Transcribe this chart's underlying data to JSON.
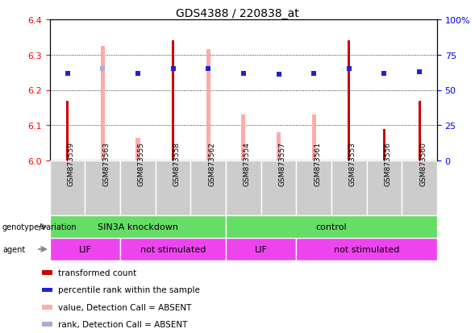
{
  "title": "GDS4388 / 220838_at",
  "samples": [
    "GSM873559",
    "GSM873563",
    "GSM873555",
    "GSM873558",
    "GSM873562",
    "GSM873554",
    "GSM873557",
    "GSM873561",
    "GSM873553",
    "GSM873556",
    "GSM873560"
  ],
  "red_bar_values": [
    6.17,
    null,
    null,
    6.34,
    null,
    null,
    null,
    null,
    6.34,
    6.09,
    6.17
  ],
  "pink_bar_values": [
    null,
    6.325,
    6.065,
    null,
    6.315,
    6.13,
    6.08,
    6.13,
    null,
    null,
    null
  ],
  "blue_square_values": [
    62,
    null,
    62,
    65,
    65,
    62,
    61,
    62,
    65,
    62,
    63
  ],
  "blue_square_absent": [
    null,
    65,
    null,
    null,
    null,
    null,
    null,
    null,
    null,
    null,
    null
  ],
  "ylim_left": [
    6.0,
    6.4
  ],
  "ylim_right": [
    0,
    100
  ],
  "yticks_left": [
    6.0,
    6.1,
    6.2,
    6.3,
    6.4
  ],
  "yticks_right": [
    0,
    25,
    50,
    75,
    100
  ],
  "ytick_labels_right": [
    "0",
    "25",
    "50",
    "75",
    "100%"
  ],
  "grid_values": [
    6.1,
    6.2,
    6.3
  ],
  "red_color": "#cc0000",
  "pink_color": "#ffaaaa",
  "blue_color": "#2222cc",
  "light_blue_color": "#aaaadd",
  "green_color": "#66dd66",
  "magenta_color": "#ee44ee",
  "gray_color": "#d0d0d0",
  "sample_label_bg": "#cccccc",
  "legend_items": [
    {
      "label": "transformed count",
      "color": "#cc0000"
    },
    {
      "label": "percentile rank within the sample",
      "color": "#2222cc"
    },
    {
      "label": "value, Detection Call = ABSENT",
      "color": "#ffaaaa"
    },
    {
      "label": "rank, Detection Call = ABSENT",
      "color": "#aaaadd"
    }
  ],
  "geno_groups": [
    {
      "label": "SIN3A knockdown",
      "start": 0,
      "end": 5
    },
    {
      "label": "control",
      "start": 5,
      "end": 11
    }
  ],
  "agent_groups": [
    {
      "label": "LIF",
      "start": 0,
      "end": 2
    },
    {
      "label": "not stimulated",
      "start": 2,
      "end": 5
    },
    {
      "label": "LIF",
      "start": 5,
      "end": 7
    },
    {
      "label": "not stimulated",
      "start": 7,
      "end": 11
    }
  ]
}
